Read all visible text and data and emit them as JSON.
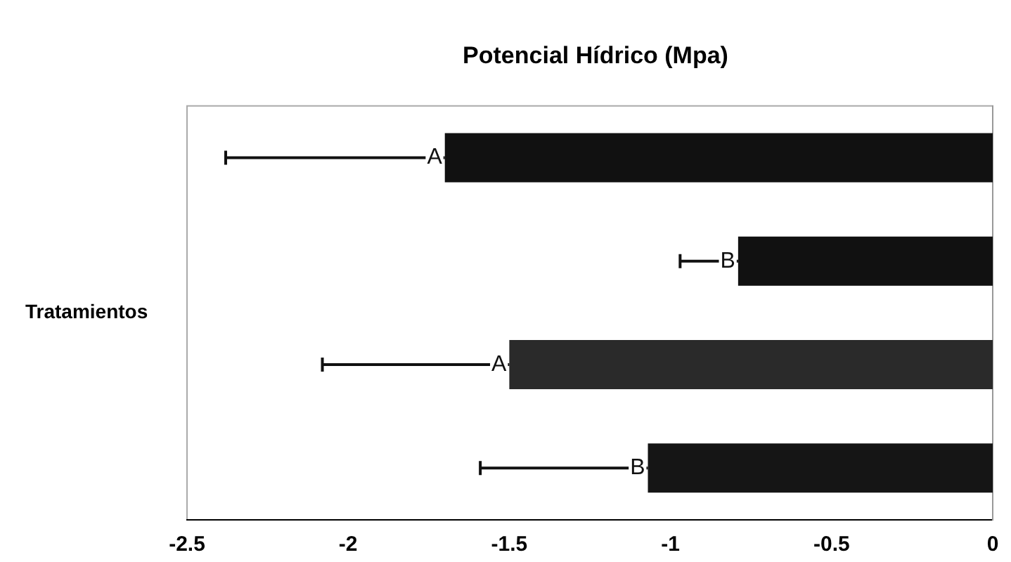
{
  "chart_data": {
    "type": "bar",
    "orientation": "horizontal",
    "title": "Potencial Hídrico (Mpa)",
    "ylabel": "Tratamientos",
    "categories": [
      null,
      null,
      null,
      null
    ],
    "values": [
      -1.7,
      -0.79,
      -1.5,
      -1.07
    ],
    "colors": [
      "#111111",
      "#111111",
      "#2a2a2a",
      "#151515"
    ],
    "errors": [
      [
        -2.38,
        -1.7
      ],
      [
        -0.97,
        -0.79
      ],
      [
        -2.08,
        -1.5
      ],
      [
        -1.59,
        -1.07
      ]
    ],
    "annotations": [
      {
        "text": "A",
        "x": -1.7
      },
      {
        "text": "B",
        "x": -0.79
      },
      {
        "text": "A",
        "x": -1.5
      },
      {
        "text": "B",
        "x": -1.07
      }
    ],
    "xlim": [
      -2.5,
      0
    ],
    "xticks": [
      -2.5,
      -2,
      -1.5,
      -1,
      -0.5,
      0
    ],
    "grid": false,
    "legend": false
  }
}
